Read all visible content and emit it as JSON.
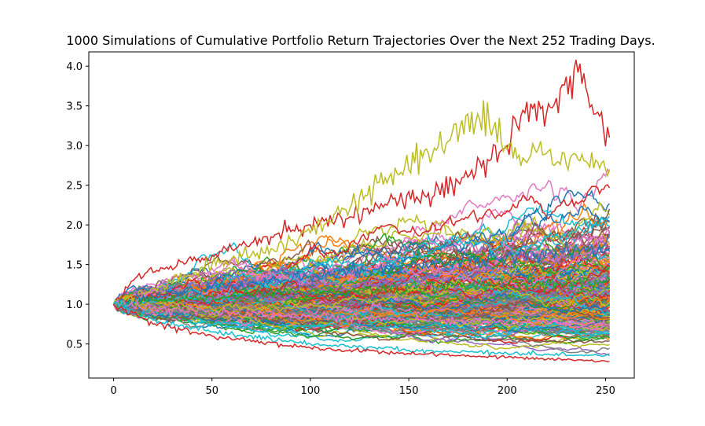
{
  "chart_data": {
    "type": "line",
    "title": "1000 Simulations of Cumulative Portfolio Return Trajectories Over the Next 252 Trading Days.",
    "xlabel": "",
    "ylabel": "",
    "xlim": [
      -12.6,
      264.6
    ],
    "ylim": [
      0.07,
      4.18
    ],
    "x_ticks": [
      0,
      50,
      100,
      150,
      200,
      250
    ],
    "x_tick_labels": [
      "0",
      "50",
      "100",
      "150",
      "200",
      "250"
    ],
    "y_ticks": [
      0.5,
      1.0,
      1.5,
      2.0,
      2.5,
      3.0,
      3.5,
      4.0
    ],
    "y_tick_labels": [
      "0.5",
      "1.0",
      "1.5",
      "2.0",
      "2.5",
      "3.0",
      "3.5",
      "4.0"
    ],
    "grid": false,
    "legend": "none",
    "n_simulations": 1000,
    "n_steps": 252,
    "start_value": 1.0,
    "final_value_range_visible": [
      0.28,
      3.1
    ],
    "max_value_visible": 3.92,
    "series_colors": [
      "#1f77b4",
      "#ff7f0e",
      "#2ca02c",
      "#d62728",
      "#9467bd",
      "#8c564b",
      "#e377c2",
      "#7f7f7f",
      "#bcbd22",
      "#17becf"
    ],
    "representative_series": [
      {
        "x": [
          0,
          10,
          20,
          40,
          60,
          80,
          100,
          120,
          140,
          160,
          180,
          200,
          210,
          220,
          236,
          245,
          252
        ],
        "values": [
          1.0,
          1.3,
          1.4,
          1.55,
          1.7,
          1.85,
          2.0,
          2.1,
          2.3,
          2.4,
          2.6,
          3.0,
          3.55,
          3.4,
          3.92,
          3.4,
          3.1
        ]
      },
      {
        "x": [
          0,
          20,
          50,
          80,
          100,
          120,
          140,
          160,
          185,
          200,
          220,
          240,
          252
        ],
        "values": [
          1.0,
          1.2,
          1.5,
          1.7,
          1.9,
          2.2,
          2.6,
          2.9,
          3.4,
          2.95,
          2.9,
          2.8,
          2.7
        ]
      },
      {
        "x": [
          0,
          20,
          50,
          100,
          150,
          200,
          252
        ],
        "values": [
          1.0,
          1.1,
          1.2,
          1.35,
          1.5,
          1.6,
          1.7
        ]
      },
      {
        "x": [
          0,
          20,
          50,
          100,
          150,
          200,
          252
        ],
        "values": [
          1.0,
          1.05,
          1.1,
          1.15,
          1.2,
          1.25,
          1.3
        ]
      },
      {
        "x": [
          0,
          20,
          50,
          100,
          150,
          200,
          252
        ],
        "values": [
          1.0,
          0.95,
          0.9,
          0.85,
          0.8,
          0.78,
          0.75
        ]
      },
      {
        "x": [
          0,
          20,
          50,
          100,
          150,
          200,
          252
        ],
        "values": [
          1.0,
          0.8,
          0.65,
          0.5,
          0.42,
          0.38,
          0.35
        ]
      },
      {
        "x": [
          0,
          20,
          50,
          100,
          150,
          200,
          230,
          252
        ],
        "values": [
          1.0,
          0.75,
          0.6,
          0.45,
          0.38,
          0.33,
          0.3,
          0.28
        ]
      }
    ]
  }
}
